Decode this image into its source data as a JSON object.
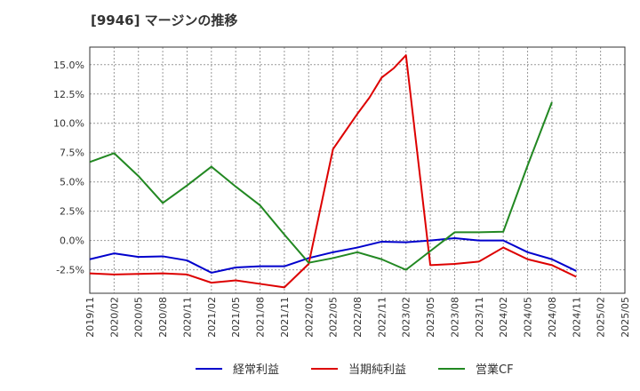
{
  "chart_data": {
    "type": "line",
    "title": "[9946]  マージンの推移",
    "xlabel": "",
    "ylabel": "",
    "ylim": [
      -4.5,
      16.5
    ],
    "grid": true,
    "legend_position": "bottom",
    "y_ticks": [
      -2.5,
      0.0,
      2.5,
      5.0,
      7.5,
      10.0,
      12.5,
      15.0
    ],
    "y_tick_labels": [
      "-2.5%",
      "0.0%",
      "2.5%",
      "5.0%",
      "7.5%",
      "10.0%",
      "12.5%",
      "15.0%"
    ],
    "categories": [
      "2019/11",
      "2020/02",
      "2020/05",
      "2020/08",
      "2020/11",
      "2021/02",
      "2021/05",
      "2021/08",
      "2021/11",
      "2022/02",
      "2022/05",
      "2022/08",
      "2022/11",
      "2023/02",
      "2023/05",
      "2023/08",
      "2023/11",
      "2024/02",
      "2024/05",
      "2024/08",
      "2024/11",
      "2025/02",
      "2025/05"
    ],
    "series": [
      {
        "name": "経常利益",
        "color": "#0000cc",
        "values": [
          -1.6,
          -1.1,
          -1.4,
          -1.35,
          -1.7,
          -2.75,
          -2.3,
          -2.2,
          -2.2,
          -1.5,
          -1.0,
          -0.6,
          -0.1,
          -0.15,
          0.0,
          0.2,
          0.0,
          0.0,
          -1.0,
          -1.6,
          -2.6,
          null,
          null
        ]
      },
      {
        "name": "当期純利益",
        "color": "#dd0000",
        "points": [
          {
            "x": 0,
            "y": -2.8
          },
          {
            "x": 1,
            "y": -2.9
          },
          {
            "x": 2,
            "y": -2.85
          },
          {
            "x": 3,
            "y": -2.8
          },
          {
            "x": 4,
            "y": -2.9
          },
          {
            "x": 5,
            "y": -3.6
          },
          {
            "x": 6,
            "y": -3.4
          },
          {
            "x": 7,
            "y": -3.7
          },
          {
            "x": 8,
            "y": -4.0
          },
          {
            "x": 9,
            "y": -2.0
          },
          {
            "x": 10,
            "y": 7.8
          },
          {
            "x": 11,
            "y": 10.8
          },
          {
            "x": 11.5,
            "y": 12.2
          },
          {
            "x": 12,
            "y": 13.9
          },
          {
            "x": 12.5,
            "y": 14.7
          },
          {
            "x": 13,
            "y": 15.8
          },
          {
            "x": 14,
            "y": -2.1
          },
          {
            "x": 15,
            "y": -2.0
          },
          {
            "x": 16,
            "y": -1.8
          },
          {
            "x": 17,
            "y": -0.6
          },
          {
            "x": 18,
            "y": -1.6
          },
          {
            "x": 19,
            "y": -2.1
          },
          {
            "x": 20,
            "y": -3.1
          }
        ]
      },
      {
        "name": "営業CF",
        "color": "#228822",
        "values": [
          6.7,
          7.45,
          5.5,
          3.2,
          4.7,
          6.3,
          4.6,
          3.0,
          0.5,
          -1.9,
          -1.5,
          -1.0,
          -1.6,
          -2.5,
          -0.9,
          0.7,
          0.7,
          0.75,
          6.4,
          11.8,
          null,
          null,
          null
        ]
      }
    ]
  }
}
